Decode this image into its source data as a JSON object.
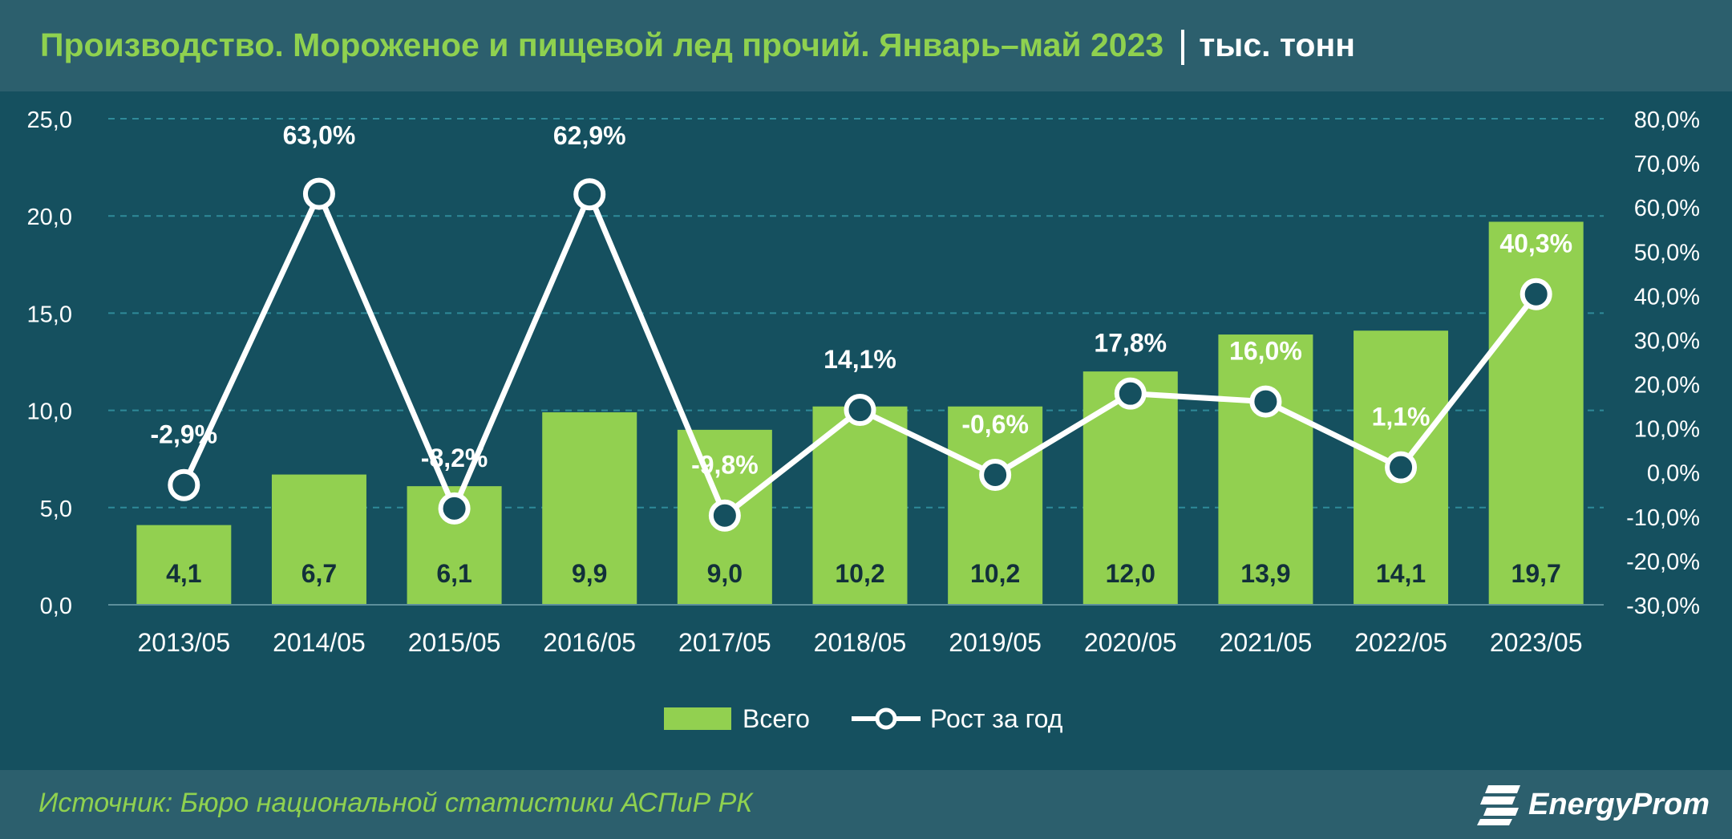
{
  "header": {
    "title": "Производство. Мороженое и пищевой лед прочий. Январь–май 2023",
    "unit": "тыс. тонн"
  },
  "footer": {
    "source": "Источник: Бюро национальной статистики АСПиР РК",
    "logo_text": "EnergyProm",
    "logo_icon": "energyprom-logo-icon"
  },
  "colors": {
    "background": "#15505f",
    "bar": "#92d050",
    "line": "#ffffff",
    "title": "#8fd14f",
    "gridline": "#2f8a99"
  },
  "chart_data": {
    "type": "bar",
    "categories": [
      "2013/05",
      "2014/05",
      "2015/05",
      "2016/05",
      "2017/05",
      "2018/05",
      "2019/05",
      "2020/05",
      "2021/05",
      "2022/05",
      "2023/05"
    ],
    "series": [
      {
        "name": "Всего",
        "type": "bar",
        "axis": "left",
        "values": [
          4.1,
          6.7,
          6.1,
          9.9,
          9.0,
          10.2,
          10.2,
          12.0,
          13.9,
          14.1,
          19.7
        ],
        "labels": [
          "4,1",
          "6,7",
          "6,1",
          "9,9",
          "9,0",
          "10,2",
          "10,2",
          "12,0",
          "13,9",
          "14,1",
          "19,7"
        ]
      },
      {
        "name": "Рост за год",
        "type": "line",
        "axis": "right",
        "values": [
          -2.9,
          63.0,
          -8.2,
          62.9,
          -9.8,
          14.1,
          -0.6,
          17.8,
          16.0,
          1.1,
          40.3
        ],
        "labels": [
          "-2,9%",
          "63,0%",
          "-8,2%",
          "62,9%",
          "-9,8%",
          "14,1%",
          "-0,6%",
          "17,8%",
          "16,0%",
          "1,1%",
          "40,3%"
        ]
      }
    ],
    "y_left": {
      "range": [
        0,
        25
      ],
      "ticks": [
        "0,0",
        "5,0",
        "10,0",
        "15,0",
        "20,0",
        "25,0"
      ]
    },
    "y_right": {
      "range": [
        -30,
        80
      ],
      "ticks": [
        "-30,0%",
        "-20,0%",
        "-10,0%",
        "0,0%",
        "10,0%",
        "20,0%",
        "30,0%",
        "40,0%",
        "50,0%",
        "60,0%",
        "70,0%",
        "80,0%"
      ]
    },
    "grid": true,
    "legend_position": "bottom"
  }
}
